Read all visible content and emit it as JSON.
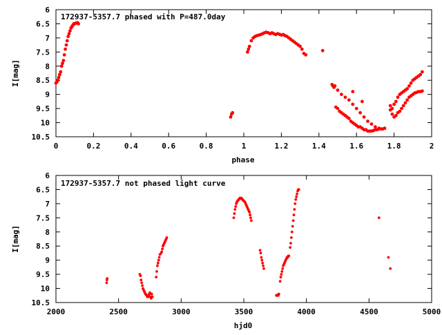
{
  "colors": {
    "points": "#ff0000",
    "axes": "#000000",
    "background": "#ffffff"
  },
  "chart_data": [
    {
      "type": "scatter",
      "title": "172937-5357.7 phased with P=487.0day",
      "xlabel": "phase",
      "ylabel": "I[mag]",
      "xlim": [
        0,
        2
      ],
      "ylim": [
        10.5,
        6
      ],
      "y_inverted": true,
      "grid": false,
      "x_ticks": [
        "0",
        "0.2",
        "0.4",
        "0.6",
        "0.8",
        "1",
        "1.2",
        "1.4",
        "1.6",
        "1.8",
        "2"
      ],
      "y_ticks": [
        "6",
        "6.5",
        "7",
        "7.5",
        "8",
        "8.5",
        "9",
        "9.5",
        "10",
        "10.5"
      ],
      "series": [
        {
          "x": [
            0.0,
            0.005,
            0.01,
            0.015,
            0.02,
            0.025,
            0.03,
            0.035,
            0.04,
            0.045,
            0.05,
            0.055,
            0.06,
            0.065,
            0.07,
            0.075,
            0.08,
            0.085,
            0.09,
            0.095,
            0.1,
            0.105,
            0.11,
            0.115,
            0.12,
            0.93,
            0.935,
            0.94,
            1.02,
            1.025,
            1.03,
            1.04,
            1.05,
            1.06,
            1.07,
            1.08,
            1.09,
            1.1,
            1.11,
            1.12,
            1.13,
            1.14,
            1.15,
            1.16,
            1.17,
            1.18,
            1.19,
            1.2,
            1.21,
            1.22,
            1.23,
            1.24,
            1.25,
            1.26,
            1.27,
            1.28,
            1.29,
            1.3,
            1.31,
            1.32,
            1.33,
            1.42,
            1.47,
            1.475,
            1.48,
            1.485,
            1.49,
            1.5,
            1.51,
            1.52,
            1.53,
            1.54,
            1.55,
            1.56,
            1.57,
            1.58,
            1.59,
            1.6,
            1.61,
            1.62,
            1.63,
            1.64,
            1.65,
            1.66,
            1.67,
            1.68,
            1.69,
            1.7,
            1.71,
            1.72,
            1.73,
            1.74,
            1.75,
            1.5,
            1.52,
            1.54,
            1.56,
            1.58,
            1.6,
            1.62,
            1.64,
            1.66,
            1.68,
            1.7,
            1.72,
            1.58,
            1.63,
            1.78,
            1.79,
            1.8,
            1.81,
            1.82,
            1.83,
            1.84,
            1.85,
            1.86,
            1.87,
            1.88,
            1.89,
            1.9,
            1.91,
            1.92,
            1.93,
            1.94,
            1.95,
            1.78,
            1.79,
            1.8,
            1.81,
            1.82,
            1.83,
            1.84,
            1.85,
            1.86,
            1.87,
            1.88,
            1.89,
            1.9,
            1.91,
            1.92,
            1.93,
            1.94,
            1.95
          ],
          "y": [
            8.6,
            8.55,
            8.5,
            8.4,
            8.3,
            8.2,
            8.0,
            7.9,
            7.8,
            7.6,
            7.4,
            7.25,
            7.1,
            6.95,
            6.85,
            6.75,
            6.65,
            6.6,
            6.55,
            6.5,
            6.5,
            6.48,
            6.47,
            6.46,
            6.5,
            9.8,
            9.7,
            9.65,
            7.5,
            7.4,
            7.3,
            7.1,
            7.0,
            6.95,
            6.92,
            6.9,
            6.88,
            6.85,
            6.82,
            6.8,
            6.82,
            6.85,
            6.82,
            6.85,
            6.88,
            6.85,
            6.87,
            6.9,
            6.88,
            6.92,
            6.95,
            7.0,
            7.05,
            7.1,
            7.15,
            7.2,
            7.25,
            7.3,
            7.4,
            7.55,
            7.6,
            7.45,
            8.65,
            8.7,
            8.75,
            8.7,
            9.45,
            9.5,
            9.6,
            9.65,
            9.7,
            9.75,
            9.8,
            9.85,
            9.95,
            10.0,
            10.05,
            10.1,
            10.15,
            10.15,
            10.2,
            10.25,
            10.25,
            10.3,
            10.3,
            10.3,
            10.28,
            10.25,
            10.25,
            10.22,
            10.22,
            10.22,
            10.2,
            8.85,
            9.0,
            9.1,
            9.2,
            9.35,
            9.5,
            9.65,
            9.8,
            9.95,
            10.05,
            10.15,
            10.2,
            8.9,
            9.25,
            9.4,
            9.5,
            9.35,
            9.25,
            9.1,
            9.0,
            8.95,
            8.9,
            8.85,
            8.8,
            8.7,
            8.6,
            8.5,
            8.45,
            8.4,
            8.35,
            8.3,
            8.2,
            9.55,
            9.7,
            9.8,
            9.75,
            9.65,
            9.6,
            9.5,
            9.4,
            9.3,
            9.2,
            9.1,
            9.05,
            9.0,
            8.95,
            8.93,
            8.9,
            8.9,
            8.88
          ]
        }
      ]
    },
    {
      "type": "scatter",
      "title": "172937-5357.7 not phased light curve",
      "xlabel": "hjd0",
      "ylabel": "I[mag]",
      "xlim": [
        2000,
        5000
      ],
      "ylim": [
        10.5,
        6
      ],
      "y_inverted": true,
      "grid": false,
      "x_ticks": [
        "2000",
        "2500",
        "3000",
        "3500",
        "4000",
        "4500",
        "5000"
      ],
      "y_ticks": [
        "6",
        "6.5",
        "7",
        "7.5",
        "8",
        "8.5",
        "9",
        "9.5",
        "10",
        "10.5"
      ],
      "series": [
        {
          "x": [
            2405,
            2407,
            2409,
            2670,
            2675,
            2680,
            2685,
            2690,
            2695,
            2700,
            2705,
            2710,
            2715,
            2720,
            2725,
            2730,
            2735,
            2740,
            2745,
            2750,
            2755,
            2760,
            2765,
            2770,
            2800,
            2805,
            2810,
            2815,
            2820,
            2825,
            2830,
            2840,
            2845,
            2850,
            2855,
            2860,
            2865,
            2870,
            2875,
            2880,
            2885,
            3420,
            3425,
            3430,
            3435,
            3440,
            3445,
            3450,
            3455,
            3460,
            3465,
            3470,
            3475,
            3480,
            3485,
            3490,
            3495,
            3500,
            3505,
            3510,
            3515,
            3520,
            3525,
            3530,
            3535,
            3540,
            3545,
            3550,
            3555,
            3560,
            3630,
            3635,
            3640,
            3645,
            3650,
            3655,
            3660,
            3760,
            3765,
            3770,
            3775,
            3780,
            3790,
            3795,
            3800,
            3805,
            3810,
            3815,
            3820,
            3825,
            3830,
            3835,
            3840,
            3845,
            3850,
            3855,
            3860,
            3870,
            3875,
            3880,
            3885,
            3890,
            3895,
            3900,
            3905,
            3910,
            3915,
            3920,
            3925,
            3930,
            3935,
            3940,
            4580,
            4655,
            4670
          ],
          "y": [
            9.8,
            9.7,
            9.65,
            9.5,
            9.55,
            9.7,
            9.8,
            9.9,
            10.0,
            10.05,
            10.1,
            10.15,
            10.2,
            10.22,
            10.25,
            10.3,
            10.3,
            10.25,
            10.2,
            10.15,
            10.3,
            10.35,
            10.2,
            10.3,
            9.6,
            9.4,
            9.2,
            9.1,
            9.0,
            8.9,
            8.8,
            8.75,
            8.7,
            8.6,
            8.5,
            8.45,
            8.4,
            8.35,
            8.3,
            8.25,
            8.2,
            7.5,
            7.35,
            7.2,
            7.1,
            7.0,
            6.95,
            6.9,
            6.88,
            6.85,
            6.82,
            6.8,
            6.82,
            6.8,
            6.83,
            6.85,
            6.88,
            6.9,
            6.92,
            6.95,
            7.0,
            7.05,
            7.1,
            7.15,
            7.2,
            7.25,
            7.3,
            7.4,
            7.5,
            7.6,
            8.65,
            8.75,
            8.9,
            9.0,
            9.1,
            9.2,
            9.3,
            10.25,
            10.25,
            10.22,
            10.25,
            10.2,
            9.75,
            9.6,
            9.5,
            9.4,
            9.3,
            9.2,
            9.15,
            9.1,
            9.05,
            9.0,
            8.95,
            8.9,
            8.9,
            8.85,
            8.85,
            8.55,
            8.4,
            8.2,
            8.0,
            7.8,
            7.6,
            7.4,
            7.2,
            7.0,
            6.85,
            6.75,
            6.65,
            6.55,
            6.5,
            6.5,
            7.5,
            8.9,
            9.3
          ]
        }
      ]
    }
  ]
}
